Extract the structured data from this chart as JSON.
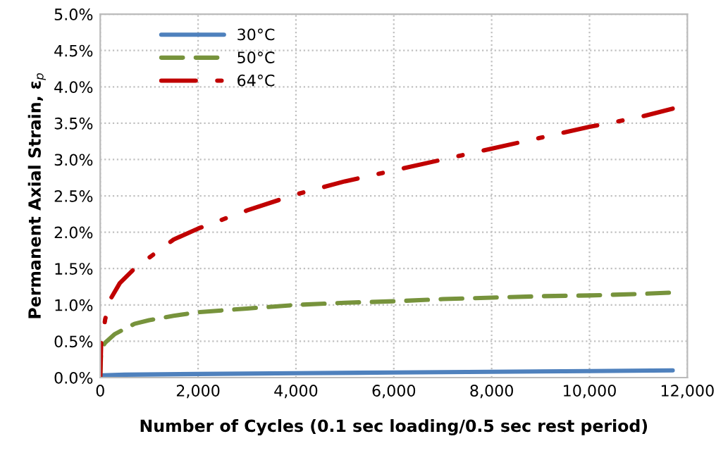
{
  "chart_data": {
    "type": "line",
    "xlabel": "Number of Cycles (0.1 sec loading/0.5 sec rest period)",
    "ylabel": "Permanent Axial Strain, ε$_{p}$",
    "xlim": [
      0,
      12000
    ],
    "xticks": [
      {
        "value": 0,
        "label": "0"
      },
      {
        "value": 2000,
        "label": "2,000"
      },
      {
        "value": 4000,
        "label": "4,000"
      },
      {
        "value": 6000,
        "label": "6,000"
      },
      {
        "value": 8000,
        "label": "8,000"
      },
      {
        "value": 10000,
        "label": "10,000"
      },
      {
        "value": 12000,
        "label": "12,000"
      }
    ],
    "ylim": [
      0,
      5
    ],
    "yticks": [
      {
        "value": 0,
        "label": "0.0%"
      },
      {
        "value": 0.5,
        "label": "0.5%"
      },
      {
        "value": 1,
        "label": "1.0%"
      },
      {
        "value": 1.5,
        "label": "1.5%"
      },
      {
        "value": 2,
        "label": "2.0%"
      },
      {
        "value": 2.5,
        "label": "2.5%"
      },
      {
        "value": 3,
        "label": "3.0%"
      },
      {
        "value": 3.5,
        "label": "3.5%"
      },
      {
        "value": 4,
        "label": "4.0%"
      },
      {
        "value": 4.5,
        "label": "4.5%"
      },
      {
        "value": 5,
        "label": "5.0%"
      }
    ],
    "grid": true,
    "legend": "top left",
    "marker": "none",
    "series": [
      {
        "name": "30°C",
        "color": "#4f81bd",
        "line_style": "solid",
        "x": [
          0,
          50,
          500,
          2000,
          4000,
          6000,
          8000,
          10000,
          11700
        ],
        "values": [
          0,
          0.03,
          0.04,
          0.05,
          0.06,
          0.07,
          0.08,
          0.09,
          0.1
        ]
      },
      {
        "name": "50°C",
        "color": "#77933c",
        "line_style": "dashed",
        "x": [
          0,
          20,
          100,
          300,
          700,
          1000,
          1500,
          2000,
          3000,
          4000,
          5000,
          6000,
          7000,
          8000,
          9000,
          10000,
          11000,
          11700
        ],
        "values": [
          0,
          0.4,
          0.48,
          0.6,
          0.74,
          0.79,
          0.85,
          0.9,
          0.95,
          1.0,
          1.03,
          1.05,
          1.08,
          1.1,
          1.12,
          1.13,
          1.15,
          1.17
        ]
      },
      {
        "name": "64°C",
        "color": "#c00000",
        "line_style": "dashdot",
        "x": [
          0,
          20,
          50,
          100,
          200,
          400,
          700,
          1000,
          1500,
          2000,
          3000,
          4000,
          5000,
          6000,
          7000,
          8000,
          9000,
          10000,
          11000,
          11700
        ],
        "values": [
          0,
          0.5,
          0.55,
          0.8,
          1.07,
          1.3,
          1.5,
          1.65,
          1.9,
          2.05,
          2.3,
          2.52,
          2.7,
          2.85,
          3.0,
          3.15,
          3.3,
          3.45,
          3.58,
          3.7
        ]
      }
    ]
  }
}
